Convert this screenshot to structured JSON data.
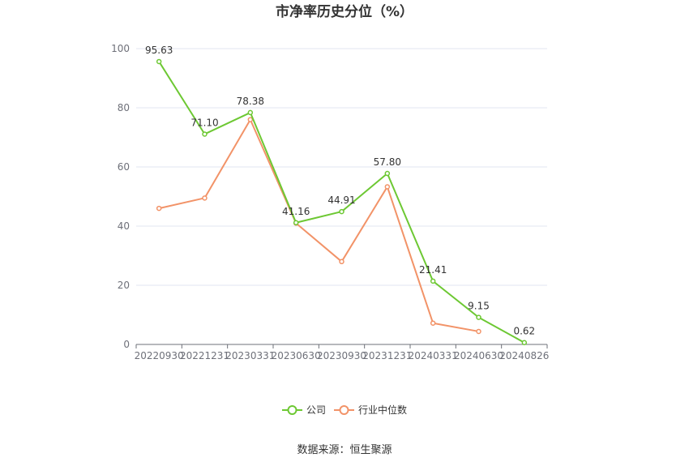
{
  "chart_data": {
    "type": "line",
    "title": "市净率历史分位（%）",
    "categories": [
      "20220930",
      "20221231",
      "20230331",
      "20230630",
      "20230930",
      "20231231",
      "20240331",
      "20240630",
      "20240826"
    ],
    "ylim": [
      0,
      100
    ],
    "yticks": [
      "0",
      "20",
      "40",
      "60",
      "80",
      "100"
    ],
    "grid": true,
    "legend_position": "bottom",
    "series": [
      {
        "name": "公司",
        "color": "#6dc833",
        "values": [
          95.63,
          71.1,
          78.38,
          41.16,
          44.91,
          57.8,
          21.41,
          9.15,
          0.62
        ],
        "labels": [
          "95.63",
          "71.10",
          "78.38",
          "41.16",
          "44.91",
          "57.80",
          "21.41",
          "9.15",
          "0.62"
        ]
      },
      {
        "name": "行业中位数",
        "color": "#f29368",
        "values": [
          46,
          49.5,
          76,
          41,
          28,
          53.3,
          7.2,
          4.4,
          null
        ]
      }
    ],
    "source": "数据来源：恒生聚源"
  }
}
